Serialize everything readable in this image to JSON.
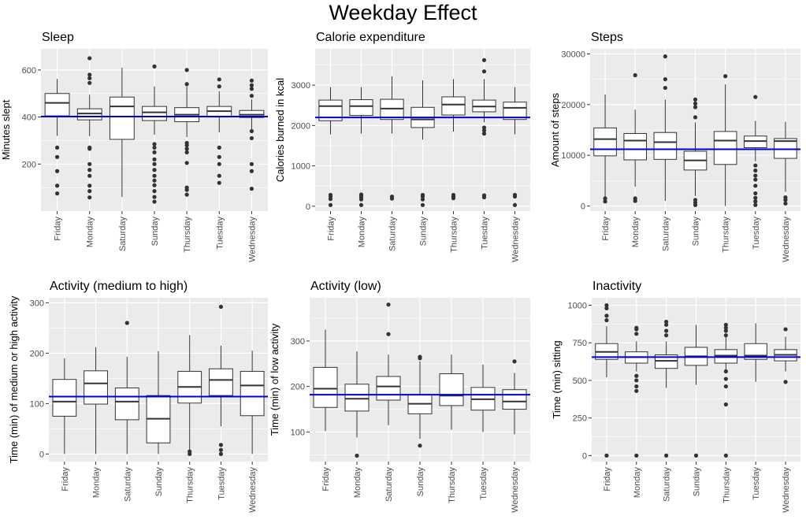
{
  "title": "Weekday Effect",
  "colors": {
    "panel_background": "#ebebeb",
    "gridline": "#ffffff",
    "box_fill": "#ffffff",
    "box_outline": "#333333",
    "outlier": "#333333",
    "mean_line": "#0000cd",
    "tick_text": "#4d4d4d"
  },
  "chart_data": [
    {
      "type": "box",
      "title": "Sleep",
      "xlabel": "",
      "ylabel": "Minutes slept",
      "categories": [
        "Friday",
        "Monday",
        "Saturday",
        "Sunday",
        "Thursday",
        "Tuesday",
        "Wednesday"
      ],
      "yticks": [
        200,
        400,
        600
      ],
      "ylim": [
        0,
        690
      ],
      "grid": true,
      "reference_line": 402,
      "boxes": [
        {
          "min": 320,
          "q1": 405,
          "median": 460,
          "q3": 500,
          "max": 562,
          "outliers": [
            75,
            108,
            170,
            230,
            270
          ]
        },
        {
          "min": 318,
          "q1": 388,
          "median": 415,
          "q3": 435,
          "max": 495,
          "outliers": [
            58,
            85,
            108,
            150,
            175,
            200,
            265,
            270,
            545,
            565,
            580,
            650
          ]
        },
        {
          "min": 60,
          "q1": 305,
          "median": 445,
          "q3": 485,
          "max": 610,
          "outliers": []
        },
        {
          "min": 325,
          "q1": 385,
          "median": 420,
          "q3": 445,
          "max": 530,
          "outliers": [
            40,
            60,
            85,
            110,
            130,
            150,
            175,
            200,
            220,
            250,
            270,
            285,
            615
          ]
        },
        {
          "min": 315,
          "q1": 380,
          "median": 410,
          "q3": 440,
          "max": 530,
          "outliers": [
            70,
            90,
            100,
            205,
            250,
            265,
            280,
            290,
            540,
            600
          ]
        },
        {
          "min": 335,
          "q1": 400,
          "median": 425,
          "q3": 445,
          "max": 510,
          "outliers": [
            120,
            150,
            200,
            230,
            270,
            530,
            560
          ]
        },
        {
          "min": 345,
          "q1": 398,
          "median": 410,
          "q3": 428,
          "max": 475,
          "outliers": [
            95,
            170,
            200,
            310,
            340,
            490,
            520,
            535,
            555
          ]
        }
      ]
    },
    {
      "type": "box",
      "title": "Calorie expenditure",
      "xlabel": "",
      "ylabel": "Calories burned in kcal",
      "categories": [
        "Friday",
        "Monday",
        "Saturday",
        "Sunday",
        "Thursday",
        "Tuesday",
        "Wednesday"
      ],
      "yticks": [
        0,
        1000,
        2000,
        3000
      ],
      "ylim": [
        -120,
        3900
      ],
      "grid": true,
      "reference_line": 2200,
      "boxes": [
        {
          "min": 1780,
          "q1": 2120,
          "median": 2480,
          "q3": 2630,
          "max": 2950,
          "outliers": [
            30,
            180,
            240,
            280
          ]
        },
        {
          "min": 1800,
          "q1": 2250,
          "median": 2480,
          "q3": 2640,
          "max": 2950,
          "outliers": [
            30,
            170,
            220,
            260,
            290
          ]
        },
        {
          "min": 1800,
          "q1": 2150,
          "median": 2420,
          "q3": 2650,
          "max": 3220,
          "outliers": [
            190,
            240
          ]
        },
        {
          "min": 1650,
          "q1": 1950,
          "median": 2150,
          "q3": 2450,
          "max": 3120,
          "outliers": [
            30,
            170,
            240,
            280
          ]
        },
        {
          "min": 1850,
          "q1": 2260,
          "median": 2520,
          "q3": 2710,
          "max": 3150,
          "outliers": [
            200,
            240,
            280
          ]
        },
        {
          "min": 2080,
          "q1": 2340,
          "median": 2470,
          "q3": 2630,
          "max": 3150,
          "outliers": [
            220,
            270,
            1800,
            1880,
            1950,
            3340,
            3620
          ]
        },
        {
          "min": 1780,
          "q1": 2150,
          "median": 2440,
          "q3": 2580,
          "max": 2950,
          "outliers": [
            30,
            240,
            280
          ]
        }
      ]
    },
    {
      "type": "box",
      "title": "Steps",
      "xlabel": "",
      "ylabel": "Amount of steps",
      "categories": [
        "Friday",
        "Monday",
        "Saturday",
        "Sunday",
        "Thursday",
        "Tuesday",
        "Wednesday"
      ],
      "yticks": [
        0,
        10000,
        20000,
        30000
      ],
      "ylim": [
        -1000,
        31000
      ],
      "grid": true,
      "reference_line": 11200,
      "boxes": [
        {
          "min": 1500,
          "q1": 9900,
          "median": 13200,
          "q3": 15400,
          "max": 22000,
          "outliers": [
            900,
            1500
          ]
        },
        {
          "min": 3800,
          "q1": 9100,
          "median": 12900,
          "q3": 14300,
          "max": 19000,
          "outliers": [
            1000,
            1500,
            25800
          ]
        },
        {
          "min": 1000,
          "q1": 9200,
          "median": 12600,
          "q3": 14500,
          "max": 21000,
          "outliers": [
            23300,
            25000,
            29500
          ]
        },
        {
          "min": 2000,
          "q1": 7100,
          "median": 9000,
          "q3": 10800,
          "max": 16500,
          "outliers": [
            200,
            700,
            1200,
            17500,
            19500,
            20200,
            21000
          ]
        },
        {
          "min": 0,
          "q1": 8200,
          "median": 12900,
          "q3": 14700,
          "max": 24000,
          "outliers": [
            25600
          ]
        },
        {
          "min": 8800,
          "q1": 11500,
          "median": 12800,
          "q3": 13800,
          "max": 16800,
          "outliers": [
            200,
            900,
            1600,
            2500,
            4000,
            5200,
            6000,
            7000,
            8000,
            21500
          ]
        },
        {
          "min": 2800,
          "q1": 9400,
          "median": 12800,
          "q3": 13300,
          "max": 16600,
          "outliers": [
            500,
            1200,
            1700
          ]
        }
      ]
    },
    {
      "type": "box",
      "title": "Activity (medium to high)",
      "xlabel": "",
      "ylabel": "Time (min) of medium or high activity",
      "categories": [
        "Friday",
        "Monday",
        "Saturday",
        "Sunday",
        "Thursday",
        "Tuesday",
        "Wednesday"
      ],
      "yticks": [
        0,
        100,
        200,
        300
      ],
      "ylim": [
        -15,
        310
      ],
      "grid": true,
      "reference_line": 114,
      "boxes": [
        {
          "min": 0,
          "q1": 75,
          "median": 104,
          "q3": 148,
          "max": 190,
          "outliers": []
        },
        {
          "min": 0,
          "q1": 99,
          "median": 140,
          "q3": 165,
          "max": 212,
          "outliers": []
        },
        {
          "min": 0,
          "q1": 68,
          "median": 104,
          "q3": 131,
          "max": 193,
          "outliers": [
            260
          ]
        },
        {
          "min": 0,
          "q1": 22,
          "median": 70,
          "q3": 116,
          "max": 204,
          "outliers": []
        },
        {
          "min": 0,
          "q1": 101,
          "median": 133,
          "q3": 164,
          "max": 236,
          "outliers": [
            0,
            5
          ]
        },
        {
          "min": 55,
          "q1": 116,
          "median": 147,
          "q3": 169,
          "max": 215,
          "outliers": [
            0,
            8,
            18,
            292
          ]
        },
        {
          "min": 0,
          "q1": 76,
          "median": 136,
          "q3": 164,
          "max": 205,
          "outliers": []
        }
      ]
    },
    {
      "type": "box",
      "title": "Activity (low)",
      "xlabel": "",
      "ylabel": "Time (min) of low activity",
      "categories": [
        "Friday",
        "Monday",
        "Saturday",
        "Sunday",
        "Thursday",
        "Tuesday",
        "Wednesday"
      ],
      "yticks": [
        100,
        200,
        300
      ],
      "ylim": [
        35,
        395
      ],
      "grid": true,
      "reference_line": 182,
      "boxes": [
        {
          "min": 102,
          "q1": 154,
          "median": 195,
          "q3": 242,
          "max": 325,
          "outliers": []
        },
        {
          "min": 88,
          "q1": 146,
          "median": 173,
          "q3": 205,
          "max": 277,
          "outliers": [
            48
          ]
        },
        {
          "min": 115,
          "q1": 170,
          "median": 200,
          "q3": 222,
          "max": 270,
          "outliers": [
            315,
            380
          ]
        },
        {
          "min": 85,
          "q1": 140,
          "median": 162,
          "q3": 182,
          "max": 255,
          "outliers": [
            70,
            262,
            265
          ]
        },
        {
          "min": 105,
          "q1": 158,
          "median": 180,
          "q3": 228,
          "max": 270,
          "outliers": []
        },
        {
          "min": 100,
          "q1": 148,
          "median": 172,
          "q3": 198,
          "max": 248,
          "outliers": []
        },
        {
          "min": 95,
          "q1": 150,
          "median": 167,
          "q3": 193,
          "max": 230,
          "outliers": [
            255
          ]
        }
      ]
    },
    {
      "type": "box",
      "title": "Inactivity",
      "xlabel": "",
      "ylabel": "Time (min) sitting",
      "categories": [
        "Friday",
        "Monday",
        "Saturday",
        "Sunday",
        "Thursday",
        "Tuesday",
        "Wednesday"
      ],
      "yticks": [
        0,
        250,
        500,
        750,
        1000
      ],
      "ylim": [
        -40,
        1050
      ],
      "grid": true,
      "reference_line": 655,
      "boxes": [
        {
          "min": 520,
          "q1": 640,
          "median": 690,
          "q3": 745,
          "max": 860,
          "outliers": [
            0,
            900,
            930,
            980,
            1000
          ]
        },
        {
          "min": 560,
          "q1": 615,
          "median": 655,
          "q3": 690,
          "max": 760,
          "outliers": [
            0,
            430,
            460,
            500,
            530,
            810,
            840,
            850
          ]
        },
        {
          "min": 450,
          "q1": 580,
          "median": 630,
          "q3": 670,
          "max": 760,
          "outliers": [
            0,
            800,
            830,
            870,
            890
          ]
        },
        {
          "min": 470,
          "q1": 600,
          "median": 660,
          "q3": 720,
          "max": 870,
          "outliers": [
            0
          ]
        },
        {
          "min": 560,
          "q1": 615,
          "median": 665,
          "q3": 705,
          "max": 790,
          "outliers": [
            0,
            340,
            460,
            510,
            560,
            800,
            830,
            850,
            870
          ]
        },
        {
          "min": 490,
          "q1": 640,
          "median": 665,
          "q3": 745,
          "max": 880,
          "outliers": []
        },
        {
          "min": 560,
          "q1": 630,
          "median": 670,
          "q3": 705,
          "max": 790,
          "outliers": [
            490,
            840
          ]
        }
      ]
    }
  ]
}
